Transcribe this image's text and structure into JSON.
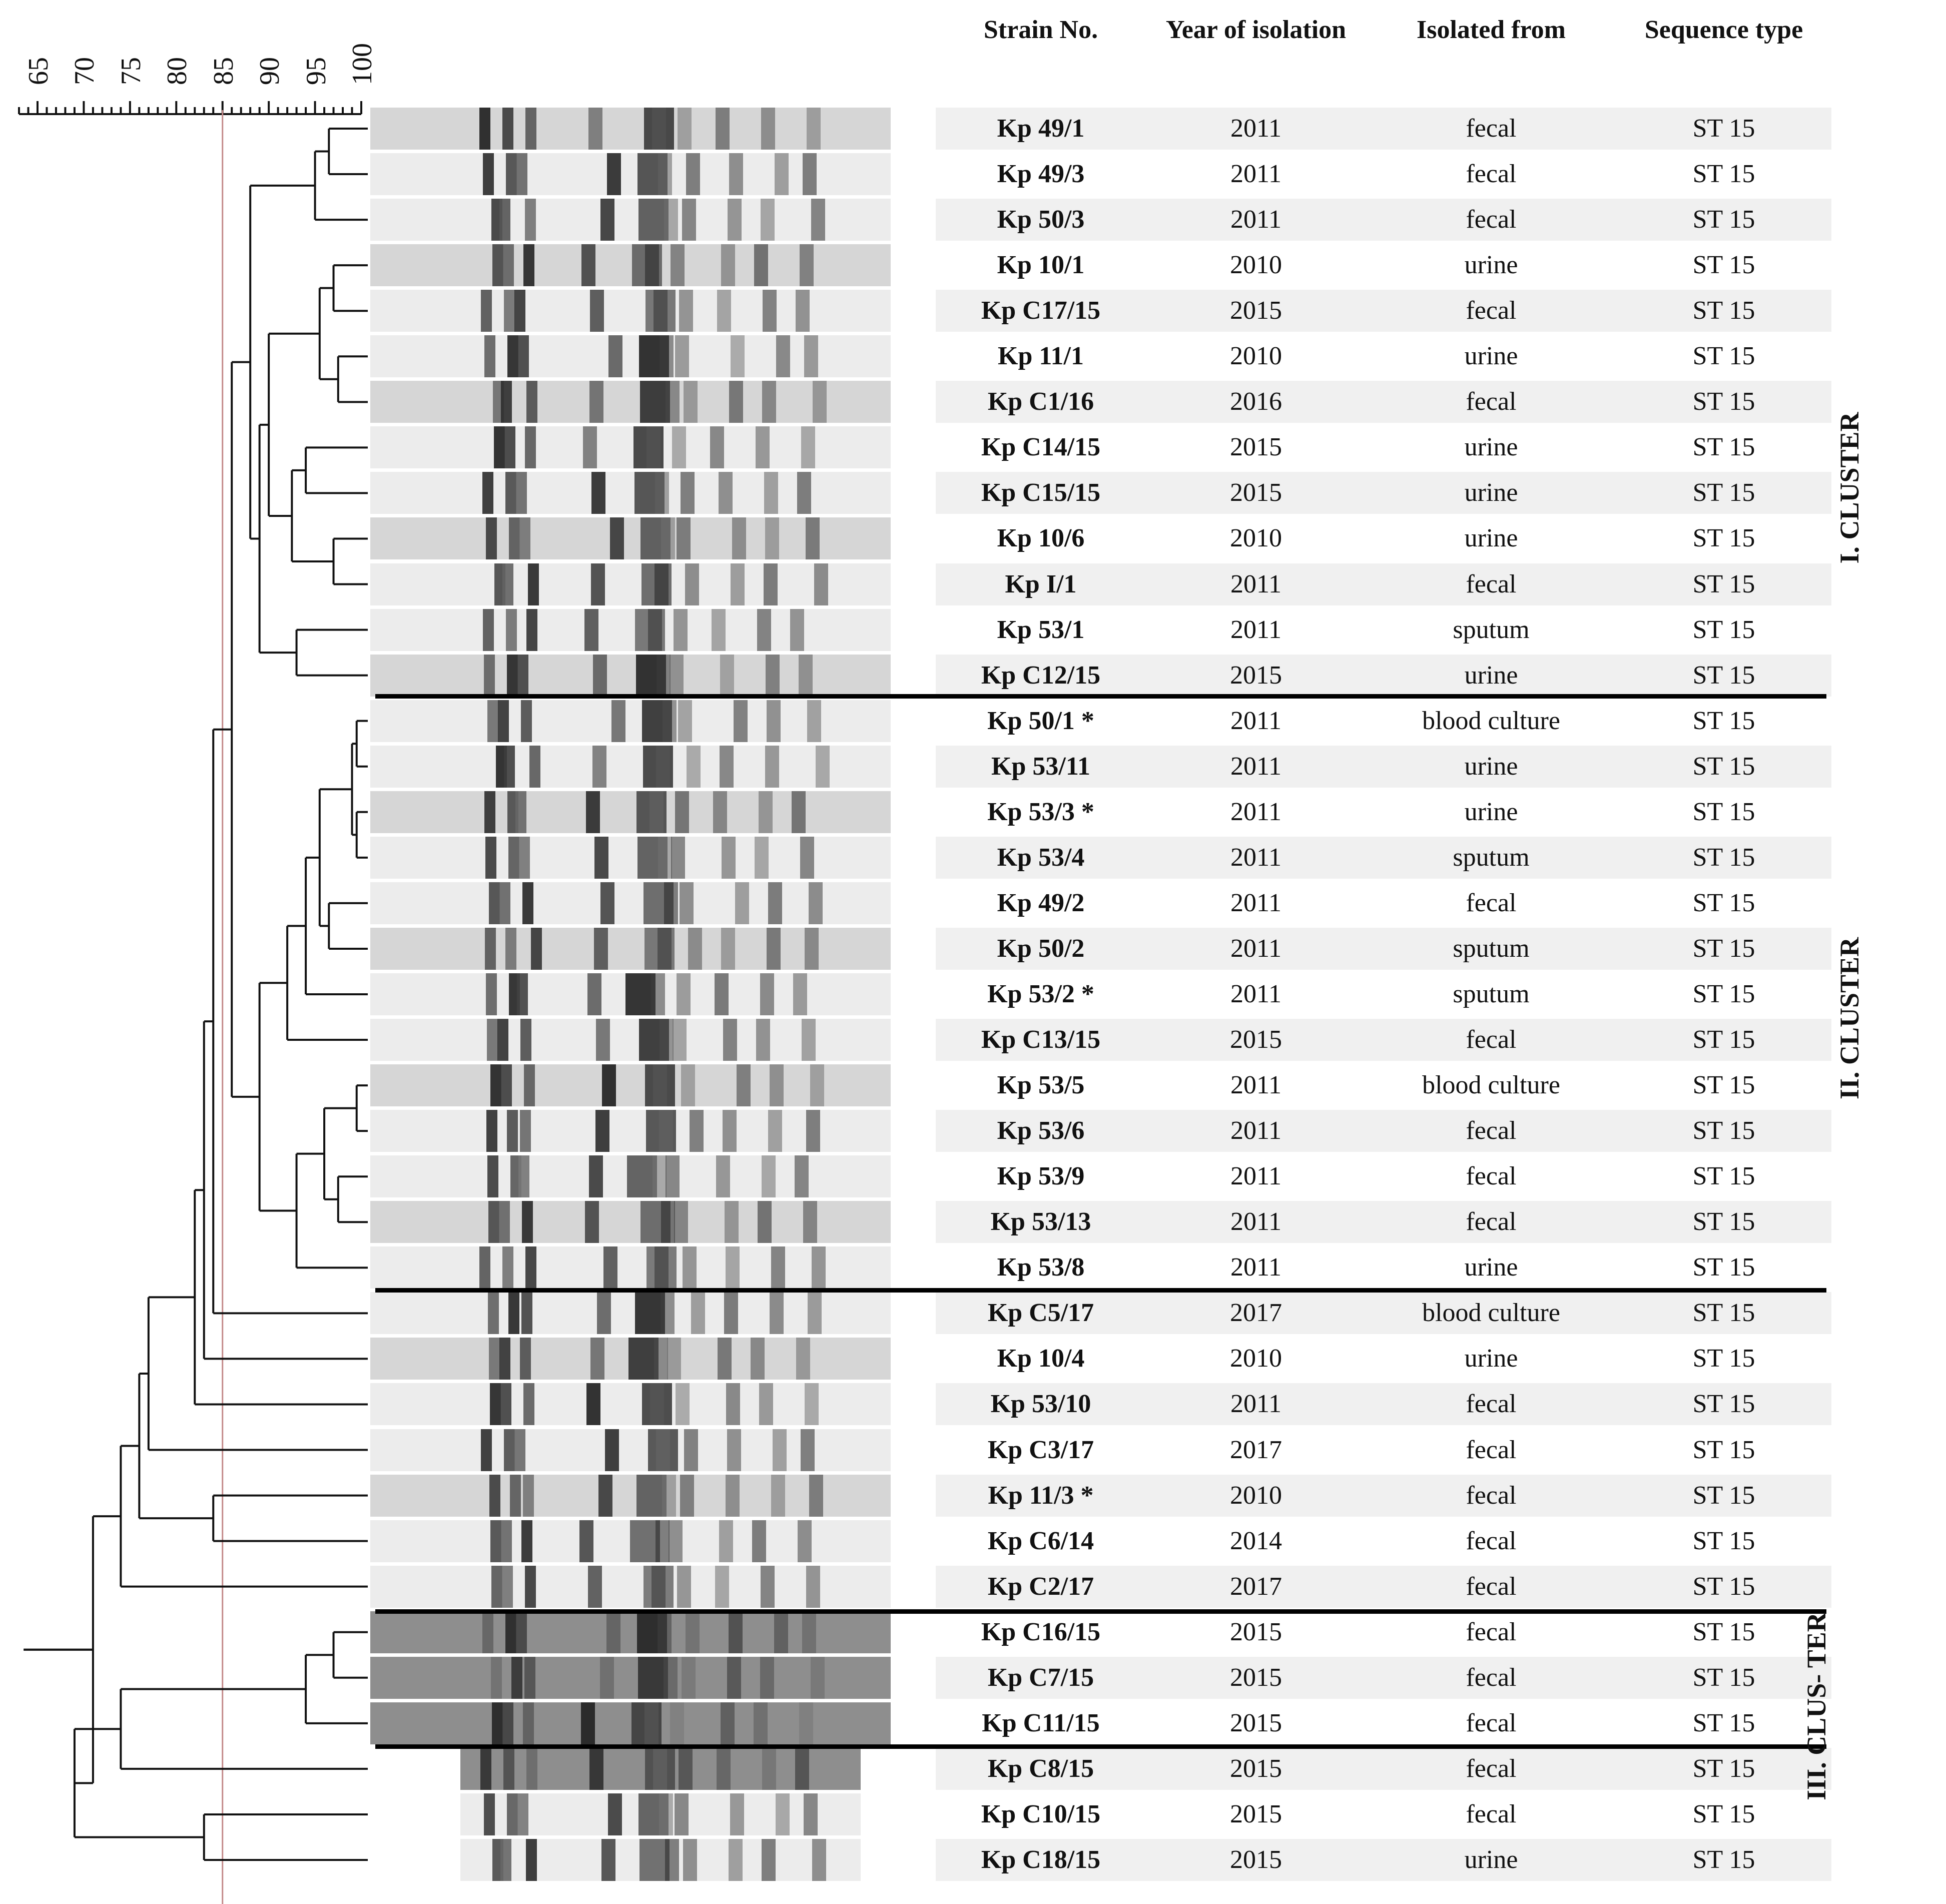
{
  "scale": {
    "ticks": [
      "65",
      "70",
      "75",
      "80",
      "85",
      "90",
      "95",
      "100"
    ]
  },
  "headers": {
    "strain": "Strain No.",
    "year": "Year of isolation",
    "source": "Isolated from",
    "sequence": "Sequence type"
  },
  "rows": [
    {
      "strain": "Kp 49/1",
      "year": "2011",
      "source": "fecal",
      "st": "ST 15"
    },
    {
      "strain": "Kp 49/3",
      "year": "2011",
      "source": "fecal",
      "st": "ST 15"
    },
    {
      "strain": "Kp 50/3",
      "year": "2011",
      "source": "fecal",
      "st": "ST 15"
    },
    {
      "strain": "Kp 10/1",
      "year": "2010",
      "source": "urine",
      "st": "ST 15"
    },
    {
      "strain": "Kp C17/15",
      "year": "2015",
      "source": "fecal",
      "st": "ST 15"
    },
    {
      "strain": "Kp 11/1",
      "year": "2010",
      "source": "urine",
      "st": "ST 15"
    },
    {
      "strain": "Kp C1/16",
      "year": "2016",
      "source": "fecal",
      "st": "ST 15"
    },
    {
      "strain": "Kp C14/15",
      "year": "2015",
      "source": "urine",
      "st": "ST 15"
    },
    {
      "strain": "Kp C15/15",
      "year": "2015",
      "source": "urine",
      "st": "ST 15"
    },
    {
      "strain": "Kp 10/6",
      "year": "2010",
      "source": "urine",
      "st": "ST 15"
    },
    {
      "strain": "Kp I/1",
      "year": "2011",
      "source": "fecal",
      "st": "ST 15"
    },
    {
      "strain": "Kp 53/1",
      "year": "2011",
      "source": "sputum",
      "st": "ST 15"
    },
    {
      "strain": "Kp C12/15",
      "year": "2015",
      "source": "urine",
      "st": "ST 15"
    },
    {
      "strain": "Kp 50/1 *",
      "year": "2011",
      "source": "blood culture",
      "st": "ST 15"
    },
    {
      "strain": "Kp 53/11",
      "year": "2011",
      "source": "urine",
      "st": "ST 15"
    },
    {
      "strain": "Kp 53/3 *",
      "year": "2011",
      "source": "urine",
      "st": "ST 15"
    },
    {
      "strain": "Kp 53/4",
      "year": "2011",
      "source": "sputum",
      "st": "ST 15"
    },
    {
      "strain": "Kp 49/2",
      "year": "2011",
      "source": "fecal",
      "st": "ST 15"
    },
    {
      "strain": "Kp 50/2",
      "year": "2011",
      "source": "sputum",
      "st": "ST 15"
    },
    {
      "strain": "Kp 53/2 *",
      "year": "2011",
      "source": "sputum",
      "st": "ST 15"
    },
    {
      "strain": "Kp C13/15",
      "year": "2015",
      "source": "fecal",
      "st": "ST 15"
    },
    {
      "strain": "Kp 53/5",
      "year": "2011",
      "source": "blood culture",
      "st": "ST 15"
    },
    {
      "strain": "Kp 53/6",
      "year": "2011",
      "source": "fecal",
      "st": "ST 15"
    },
    {
      "strain": "Kp 53/9",
      "year": "2011",
      "source": "fecal",
      "st": "ST 15"
    },
    {
      "strain": "Kp 53/13",
      "year": "2011",
      "source": "fecal",
      "st": "ST 15"
    },
    {
      "strain": "Kp 53/8",
      "year": "2011",
      "source": "urine",
      "st": "ST 15"
    },
    {
      "strain": "Kp C5/17",
      "year": "2017",
      "source": "blood culture",
      "st": "ST 15"
    },
    {
      "strain": "Kp 10/4",
      "year": "2010",
      "source": "urine",
      "st": "ST 15"
    },
    {
      "strain": "Kp 53/10",
      "year": "2011",
      "source": "fecal",
      "st": "ST 15"
    },
    {
      "strain": "Kp C3/17",
      "year": "2017",
      "source": "fecal",
      "st": "ST 15"
    },
    {
      "strain": "Kp 11/3 *",
      "year": "2010",
      "source": "fecal",
      "st": "ST 15"
    },
    {
      "strain": "Kp C6/14",
      "year": "2014",
      "source": "fecal",
      "st": "ST 15"
    },
    {
      "strain": "Kp C2/17",
      "year": "2017",
      "source": "fecal",
      "st": "ST 15"
    },
    {
      "strain": "Kp C16/15",
      "year": "2015",
      "source": "fecal",
      "st": "ST 15"
    },
    {
      "strain": "Kp C7/15",
      "year": "2015",
      "source": "fecal",
      "st": "ST 15"
    },
    {
      "strain": "Kp C11/15",
      "year": "2015",
      "source": "fecal",
      "st": "ST 15"
    },
    {
      "strain": "Kp C8/15",
      "year": "2015",
      "source": "fecal",
      "st": "ST 15"
    },
    {
      "strain": "Kp C10/15",
      "year": "2015",
      "source": "fecal",
      "st": "ST 15"
    },
    {
      "strain": "Kp C18/15",
      "year": "2015",
      "source": "urine",
      "st": "ST 15"
    }
  ],
  "clusters": {
    "c1": "I. CLUSTER",
    "c2": "II. CLUSTER",
    "c3": "III. CLUS- TER"
  },
  "colors": {
    "cutoff_line": "#c48a8a",
    "gel_dark": "#1a1a1a",
    "row_shade": "#f0f0f0"
  }
}
